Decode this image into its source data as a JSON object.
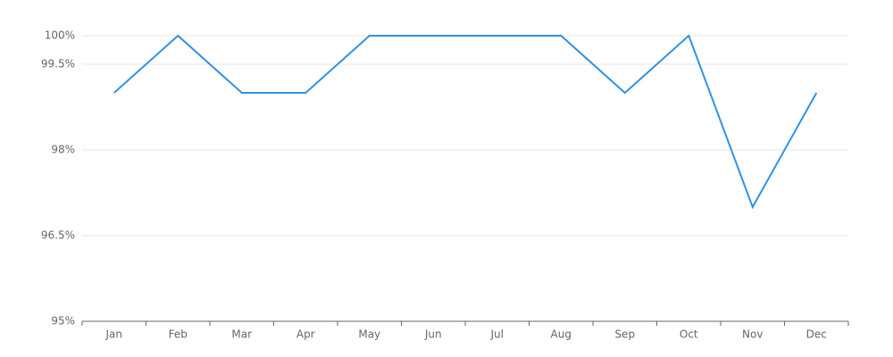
{
  "chart_data": {
    "type": "line",
    "categories": [
      "Jan",
      "Feb",
      "Mar",
      "Apr",
      "May",
      "Jun",
      "Jul",
      "Aug",
      "Sep",
      "Oct",
      "Nov",
      "Dec"
    ],
    "values": [
      99,
      100,
      99,
      99,
      100,
      100,
      100,
      100,
      99,
      100,
      97,
      99
    ],
    "color": "#2f92e4",
    "ylim": [
      95,
      100
    ],
    "yticks": [
      {
        "value": 95,
        "label": "95%"
      },
      {
        "value": 96.5,
        "label": "96.5%"
      },
      {
        "value": 98,
        "label": "98%"
      },
      {
        "value": 99.5,
        "label": "99.5%"
      },
      {
        "value": 100,
        "label": "100%"
      }
    ],
    "grid": true
  }
}
